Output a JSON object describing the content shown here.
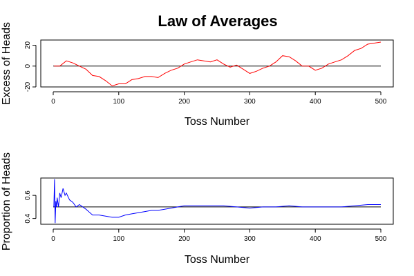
{
  "figure": {
    "title": "Law of Averages"
  },
  "chart_data": [
    {
      "type": "line",
      "xlabel": "Toss Number",
      "ylabel": "Excess of Heads",
      "xlim": [
        0,
        500
      ],
      "ylim": [
        -20,
        25
      ],
      "x_ticks": [
        0,
        100,
        200,
        300,
        400,
        500
      ],
      "y_ticks": [
        -20,
        0,
        20
      ],
      "reference_line": 0,
      "series_color": "#ff0000",
      "grid": false,
      "series": [
        {
          "x": [
            1,
            10,
            20,
            30,
            40,
            50,
            60,
            70,
            80,
            90,
            100,
            110,
            120,
            130,
            140,
            150,
            160,
            170,
            180,
            190,
            200,
            210,
            220,
            230,
            240,
            250,
            260,
            270,
            280,
            290,
            300,
            310,
            320,
            330,
            340,
            350,
            360,
            370,
            380,
            390,
            400,
            410,
            420,
            430,
            440,
            450,
            460,
            470,
            480,
            490,
            500
          ],
          "values": [
            0,
            0,
            5,
            3,
            0,
            -3,
            -9,
            -10,
            -14,
            -19,
            -17,
            -17,
            -13,
            -12,
            -10,
            -10,
            -11,
            -7,
            -4,
            -2,
            2,
            4,
            6,
            5,
            4,
            6,
            2,
            -1,
            1,
            -3,
            -7,
            -5,
            -2,
            0,
            4,
            10,
            9,
            5,
            0,
            0,
            -4,
            -2,
            2,
            4,
            6,
            10,
            15,
            17,
            21,
            22,
            23
          ]
        }
      ]
    },
    {
      "type": "line",
      "xlabel": "Toss Number",
      "ylabel": "Proportion of Heads",
      "xlim": [
        0,
        500
      ],
      "ylim": [
        0.35,
        0.75
      ],
      "x_ticks": [
        0,
        100,
        200,
        300,
        400,
        500
      ],
      "y_ticks": [
        0.4,
        0.6
      ],
      "y_tick_labels": [
        "0.4",
        "0.6"
      ],
      "reference_line": 0.5,
      "series_color": "#0000ff",
      "grid": false,
      "series": [
        {
          "x": [
            1,
            2,
            3,
            4,
            5,
            6,
            8,
            10,
            12,
            15,
            18,
            20,
            25,
            30,
            35,
            40,
            50,
            60,
            70,
            80,
            90,
            100,
            110,
            120,
            130,
            140,
            150,
            160,
            170,
            180,
            190,
            200,
            220,
            240,
            260,
            280,
            300,
            320,
            340,
            360,
            380,
            400,
            420,
            440,
            460,
            480,
            500
          ],
          "values": [
            0.5,
            0.74,
            0.36,
            0.55,
            0.5,
            0.58,
            0.5,
            0.62,
            0.58,
            0.66,
            0.6,
            0.62,
            0.56,
            0.54,
            0.5,
            0.52,
            0.48,
            0.43,
            0.43,
            0.42,
            0.41,
            0.41,
            0.43,
            0.44,
            0.45,
            0.46,
            0.47,
            0.47,
            0.48,
            0.49,
            0.5,
            0.51,
            0.51,
            0.51,
            0.51,
            0.5,
            0.49,
            0.5,
            0.5,
            0.51,
            0.5,
            0.5,
            0.5,
            0.5,
            0.51,
            0.52,
            0.52
          ]
        }
      ]
    }
  ]
}
